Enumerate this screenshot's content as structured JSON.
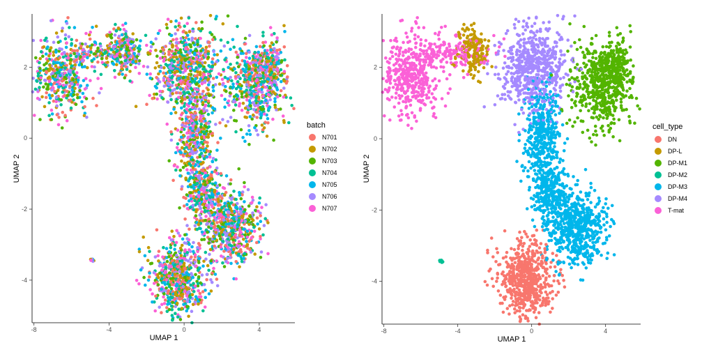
{
  "chart_data": [
    {
      "type": "scatter",
      "xlabel": "UMAP 1",
      "ylabel": "UMAP 2",
      "xlim": [
        -8.1,
        5.9
      ],
      "ylim": [
        -5.2,
        3.5
      ],
      "xticks": [
        "-8",
        "-4",
        "0",
        "4"
      ],
      "xtick_values": [
        -8,
        -4,
        0,
        4
      ],
      "yticks": [
        "-4",
        "-2",
        "0",
        "2"
      ],
      "ytick_values": [
        -4,
        -2,
        0,
        2
      ],
      "grid": false,
      "legend_position": "right",
      "legend_title": "batch",
      "series": [
        {
          "name": "N701",
          "color": "#F8766D"
        },
        {
          "name": "N702",
          "color": "#C49A00"
        },
        {
          "name": "N703",
          "color": "#53B400"
        },
        {
          "name": "N704",
          "color": "#00C094"
        },
        {
          "name": "N705",
          "color": "#00B6EB"
        },
        {
          "name": "N706",
          "color": "#A58AFF"
        },
        {
          "name": "N707",
          "color": "#FB61D7"
        }
      ],
      "coloring": "mixed"
    },
    {
      "type": "scatter",
      "xlabel": "UMAP 1",
      "ylabel": "UMAP 2",
      "xlim": [
        -8.1,
        5.9
      ],
      "ylim": [
        -5.2,
        3.5
      ],
      "xticks": [
        "-8",
        "-4",
        "0",
        "4"
      ],
      "xtick_values": [
        -8,
        -4,
        0,
        4
      ],
      "yticks": [
        "-4",
        "-2",
        "0",
        "2"
      ],
      "ytick_values": [
        -4,
        -2,
        0,
        2
      ],
      "grid": false,
      "legend_position": "right",
      "legend_title": "cell_type",
      "series": [
        {
          "name": "DN",
          "color": "#F8766D"
        },
        {
          "name": "DP-L",
          "color": "#C49A00"
        },
        {
          "name": "DP-M1",
          "color": "#53B400"
        },
        {
          "name": "DP-M2",
          "color": "#00C094"
        },
        {
          "name": "DP-M3",
          "color": "#00B6EB"
        },
        {
          "name": "DP-M4",
          "color": "#A58AFF"
        },
        {
          "name": "T-mat",
          "color": "#FB61D7"
        }
      ],
      "coloring": "by_region"
    }
  ],
  "clusters": [
    {
      "region": "upper-left",
      "cx": -6.5,
      "cy": 1.8,
      "sx": 0.75,
      "sy": 0.55,
      "n": 420,
      "type_index": 6
    },
    {
      "region": "upper-left-top",
      "cx": -4.3,
      "cy": 2.4,
      "sx": 0.9,
      "sy": 0.25,
      "n": 160,
      "type_index": 6
    },
    {
      "region": "upper-mid-left",
      "cx": -3.2,
      "cy": 2.5,
      "sx": 0.45,
      "sy": 0.35,
      "n": 180,
      "type_index": 1
    },
    {
      "region": "upper-center",
      "cx": 0.1,
      "cy": 2.0,
      "sx": 0.9,
      "sy": 0.6,
      "n": 620,
      "type_index": 5
    },
    {
      "region": "upper-right",
      "cx": 3.8,
      "cy": 1.5,
      "sx": 0.85,
      "sy": 0.6,
      "n": 560,
      "type_index": 2
    },
    {
      "region": "right-top",
      "cx": 4.5,
      "cy": 2.0,
      "sx": 0.4,
      "sy": 0.3,
      "n": 160,
      "type_index": 2
    },
    {
      "region": "stem",
      "cx": 0.6,
      "cy": 0.0,
      "sx": 0.45,
      "sy": 0.75,
      "n": 420,
      "type_index": 4
    },
    {
      "region": "mid-lower",
      "cx": 1.0,
      "cy": -1.6,
      "sx": 0.45,
      "sy": 0.45,
      "n": 260,
      "type_index": 4
    },
    {
      "region": "lower-right",
      "cx": 2.5,
      "cy": -2.5,
      "sx": 0.75,
      "sy": 0.5,
      "n": 560,
      "type_index": 4
    },
    {
      "region": "bottom",
      "cx": -0.3,
      "cy": -3.9,
      "sx": 0.75,
      "sy": 0.55,
      "n": 620,
      "type_index": 0
    },
    {
      "region": "isolated",
      "cx": -4.9,
      "cy": -3.42,
      "sx": 0.05,
      "sy": 0.03,
      "n": 10,
      "type_index": 3
    }
  ]
}
